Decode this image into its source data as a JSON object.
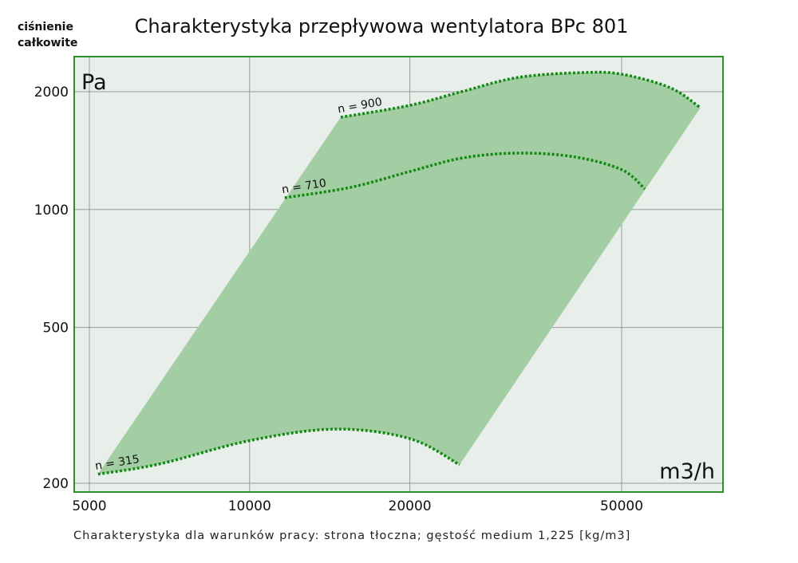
{
  "chart_data": {
    "type": "line",
    "title": "Charakterystyka przepływowa wentylatora BPc 801",
    "ylabel_top": "ciśnienie",
    "ylabel_bottom": "całkowite",
    "y_unit": "Pa",
    "x_unit": "m3/h",
    "footnote": "Charakterystyka dla warunków pracy: strona tłoczna; gęstość medium 1,225 [kg/m3]",
    "x_scale": "log",
    "y_scale": "log",
    "xlim": [
      4600,
      80000
    ],
    "ylim": [
      190,
      2600
    ],
    "x_ticks": [
      5000,
      10000,
      20000,
      50000
    ],
    "x_tick_labels": [
      "5000",
      "10000",
      "20000",
      "50000"
    ],
    "y_ticks": [
      200,
      500,
      1000,
      2000
    ],
    "y_tick_labels": [
      "200",
      "500",
      "1000",
      "2000"
    ],
    "grid": true,
    "colors": {
      "fill": "#a3cda3",
      "curve": "#138a13",
      "border": "#2f8f2f",
      "plot_bg": "#e8eeea",
      "grid": "#9a9a9a"
    },
    "series": [
      {
        "name": "n = 900",
        "x": [
          14830,
          20000,
          25000,
          32000,
          42200,
          50000,
          61700,
          70300
        ],
        "y": [
          1721,
          1846,
          2000,
          2176,
          2238,
          2217,
          2047,
          1820
        ]
      },
      {
        "name": "n = 710",
        "x": [
          11640,
          15500,
          20000,
          25150,
          32000,
          40800,
          50100,
          55270
        ],
        "y": [
          1072,
          1140,
          1251,
          1355,
          1394,
          1363,
          1263,
          1129
        ]
      },
      {
        "name": "n = 315",
        "x": [
          5190,
          6775,
          10000,
          14480,
          20000,
          24800
        ],
        "y": [
          211,
          224,
          257,
          275,
          260,
          223
        ]
      }
    ]
  }
}
